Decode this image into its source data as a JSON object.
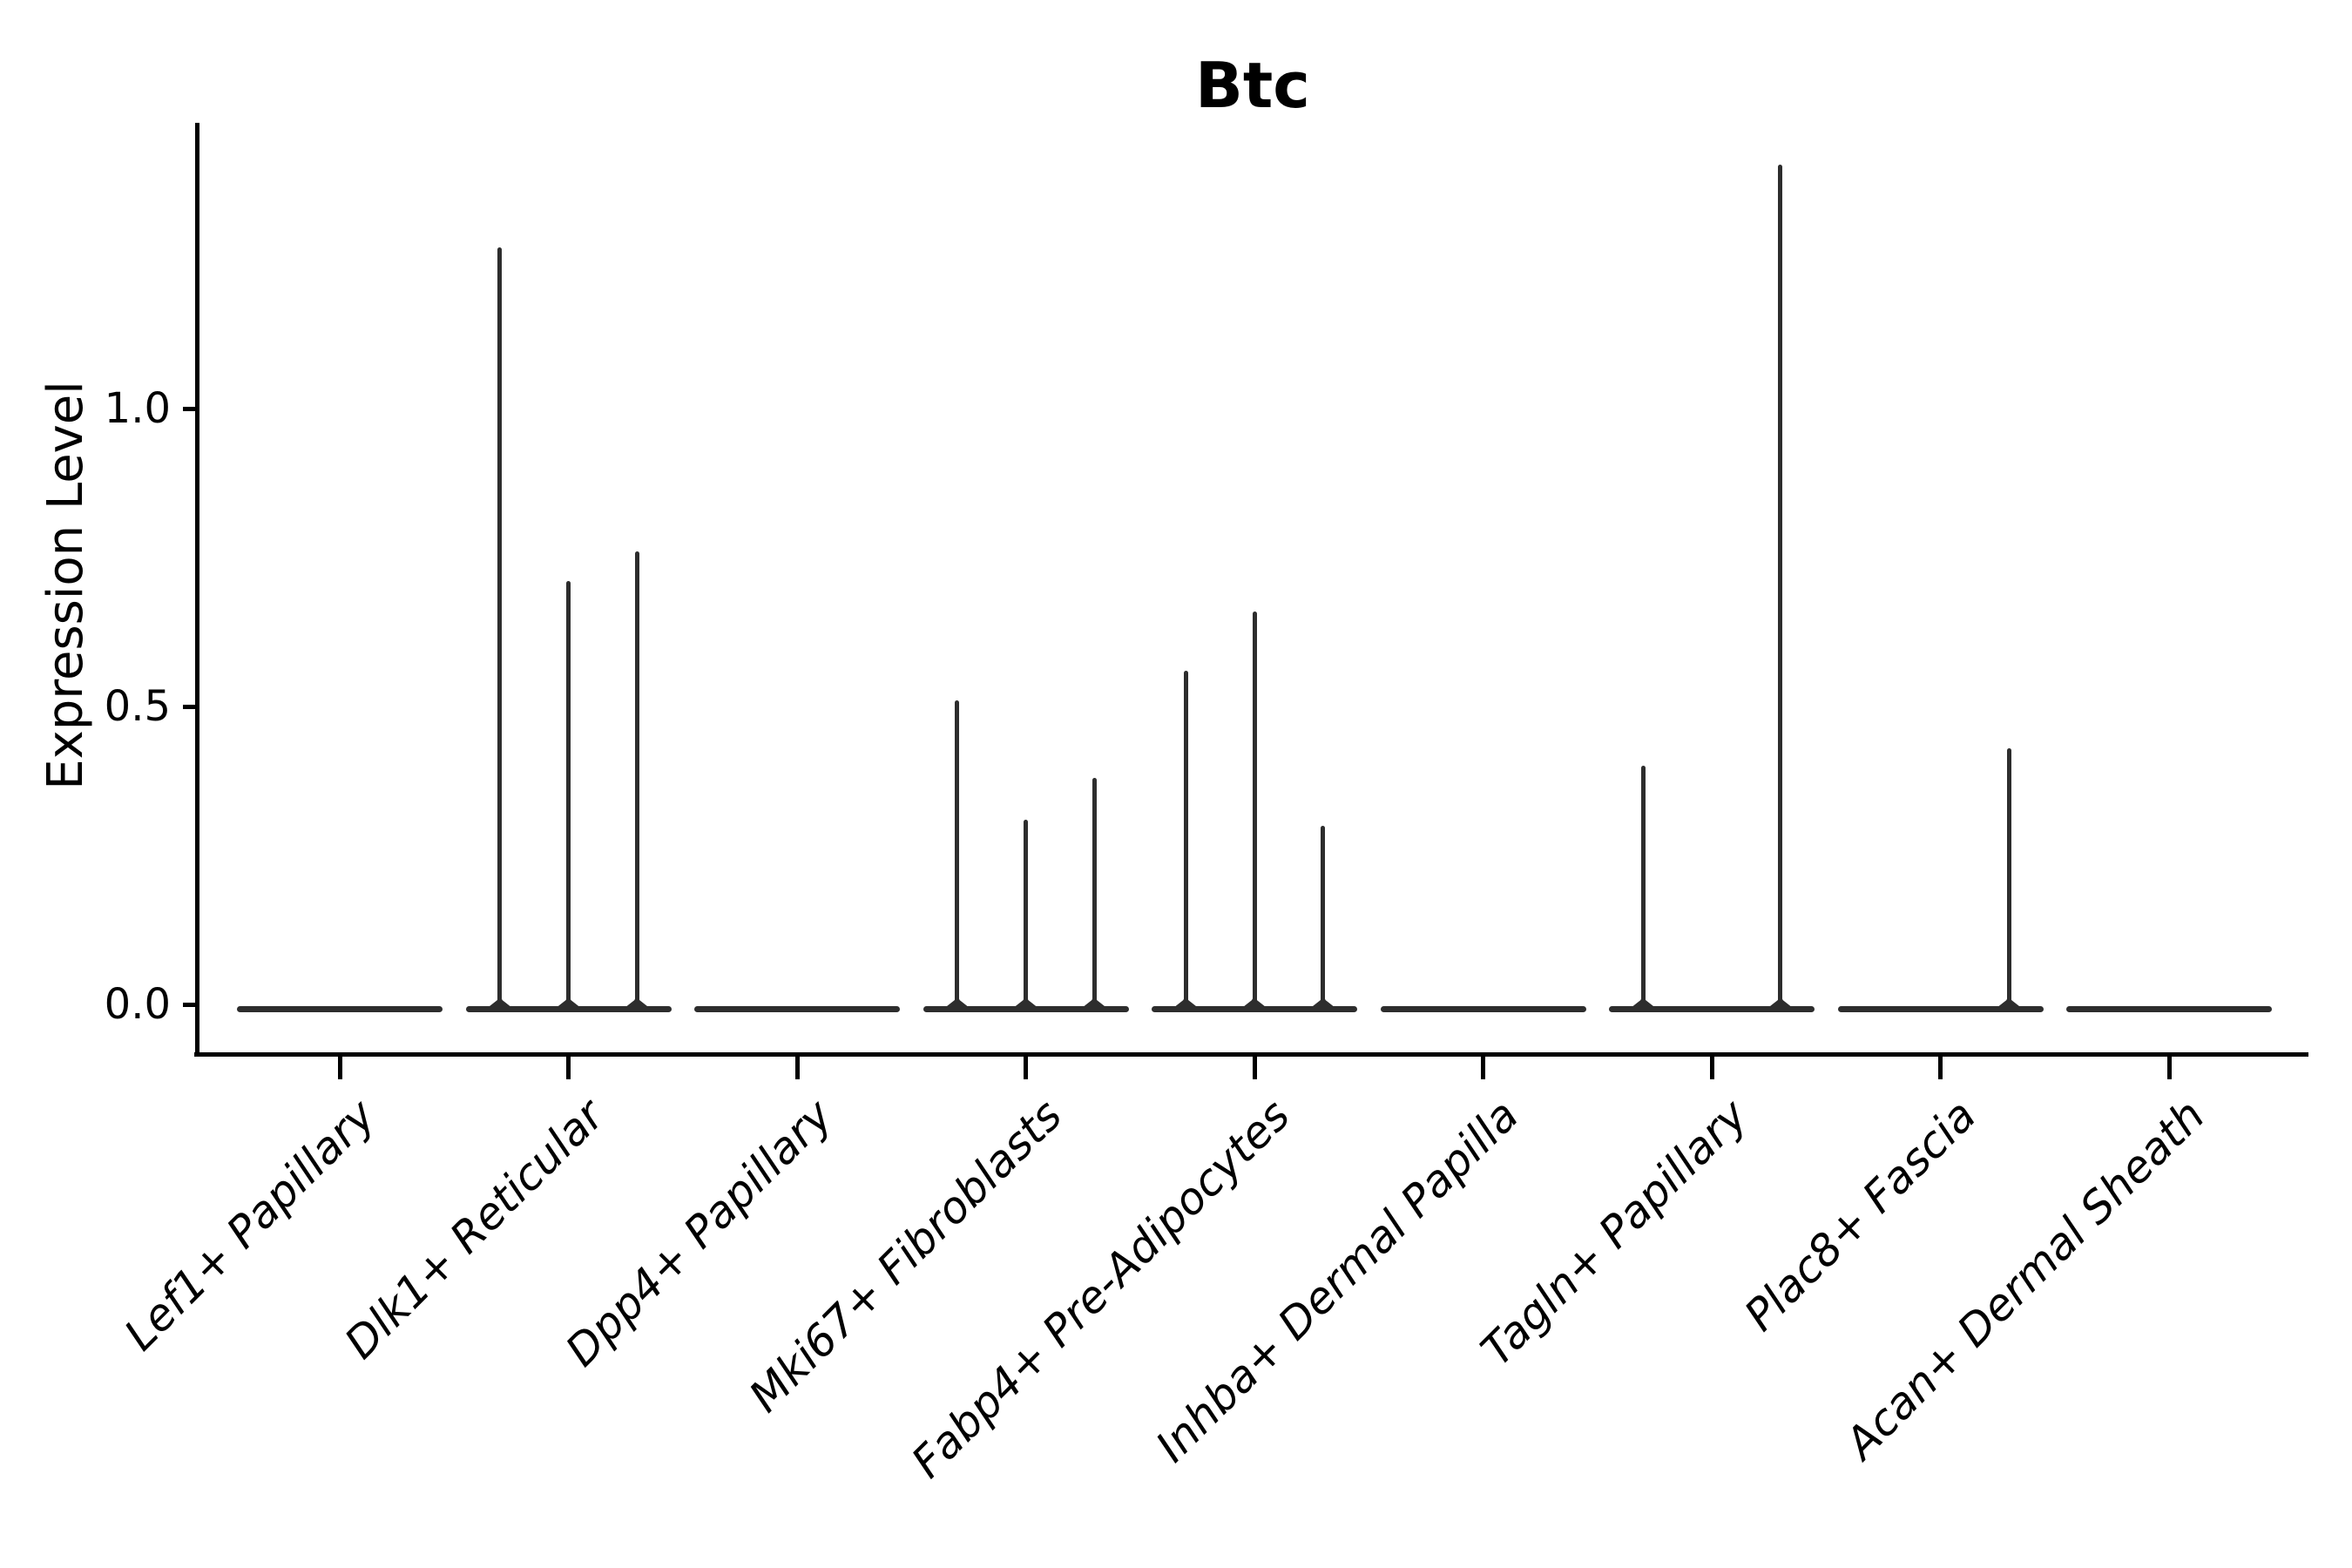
{
  "chart_data": {
    "type": "violin",
    "title": "Btc",
    "ylabel": "Expression Level",
    "xlabel": "",
    "ylim": [
      -0.08,
      1.48
    ],
    "yticks": [
      0.0,
      0.5,
      1.0
    ],
    "ytick_labels": [
      "0.0",
      "0.5",
      "1.0"
    ],
    "grid": false,
    "legend": "none",
    "violin_color": "#2d2d2d",
    "axis_color": "#000000",
    "violins_per_category": 3,
    "sub_violin_offsets": [
      -0.3,
      0,
      0.3
    ],
    "baseline_value": 0.0,
    "categories": [
      "Lef1+ Papillary",
      "Dlk1+ Reticular",
      "Dpp4+ Papillary",
      "Mki67+ Fibroblasts",
      "Fabp4+ Pre-Adipocytes",
      "Inhba+ Dermal Papilla",
      "Tagln+ Papillary",
      "Plac8+ Fascia",
      "Acan+ Dermal Sheath"
    ],
    "peaks": [
      {
        "category": "Lef1+ Papillary",
        "spikes": []
      },
      {
        "category": "Dlk1+ Reticular",
        "spikes": [
          {
            "pos": -0.3,
            "max": 1.27
          },
          {
            "pos": 0,
            "max": 0.71
          },
          {
            "pos": 0.3,
            "max": 0.76
          }
        ]
      },
      {
        "category": "Dpp4+ Papillary",
        "spikes": []
      },
      {
        "category": "Mki67+ Fibroblasts",
        "spikes": [
          {
            "pos": -0.3,
            "max": 0.51
          },
          {
            "pos": 0,
            "max": 0.31
          },
          {
            "pos": 0.3,
            "max": 0.38
          }
        ]
      },
      {
        "category": "Fabp4+ Pre-Adipocytes",
        "spikes": [
          {
            "pos": -0.3,
            "max": 0.56
          },
          {
            "pos": 0,
            "max": 0.66
          },
          {
            "pos": 0.3,
            "max": 0.3
          }
        ]
      },
      {
        "category": "Inhba+ Dermal Papilla",
        "spikes": []
      },
      {
        "category": "Tagln+ Papillary",
        "spikes": [
          {
            "pos": -0.3,
            "max": 0.4
          },
          {
            "pos": 0.3,
            "max": 1.41
          }
        ]
      },
      {
        "category": "Plac8+ Fascia",
        "spikes": [
          {
            "pos": 0.3,
            "max": 0.43
          }
        ]
      },
      {
        "category": "Acan+ Dermal Sheath",
        "spikes": []
      }
    ]
  }
}
